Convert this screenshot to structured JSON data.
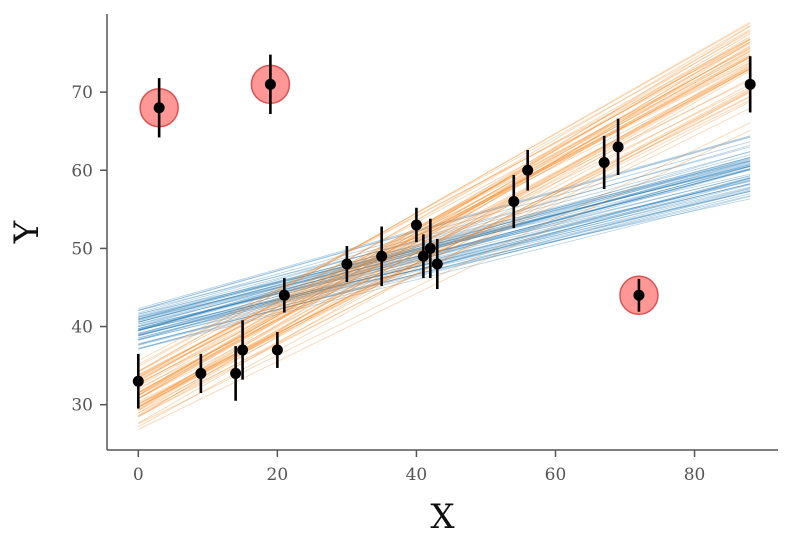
{
  "chart_data": {
    "type": "scatter",
    "title": "",
    "xlabel": "X",
    "ylabel": "Y",
    "xlim": [
      -4.5,
      92
    ],
    "ylim": [
      24.2,
      80
    ],
    "xticks": [
      0,
      20,
      40,
      60,
      80
    ],
    "yticks": [
      30,
      40,
      50,
      60,
      70
    ],
    "grid": false,
    "legend": "none",
    "points": [
      {
        "x": 0,
        "y": 33,
        "err": 3.5
      },
      {
        "x": 3,
        "y": 68,
        "err": 3.8
      },
      {
        "x": 9,
        "y": 34,
        "err": 2.5
      },
      {
        "x": 14,
        "y": 34,
        "err": 3.5
      },
      {
        "x": 15,
        "y": 37,
        "err": 3.8
      },
      {
        "x": 19,
        "y": 71,
        "err": 3.8
      },
      {
        "x": 20,
        "y": 37,
        "err": 2.3
      },
      {
        "x": 21,
        "y": 44,
        "err": 2.2
      },
      {
        "x": 30,
        "y": 48,
        "err": 2.3
      },
      {
        "x": 35,
        "y": 49,
        "err": 3.8
      },
      {
        "x": 40,
        "y": 53,
        "err": 2.2
      },
      {
        "x": 41,
        "y": 49,
        "err": 2.8
      },
      {
        "x": 42,
        "y": 50,
        "err": 3.8
      },
      {
        "x": 43,
        "y": 48,
        "err": 3.2
      },
      {
        "x": 54,
        "y": 56,
        "err": 3.4
      },
      {
        "x": 56,
        "y": 60,
        "err": 2.6
      },
      {
        "x": 67,
        "y": 61,
        "err": 3.4
      },
      {
        "x": 69,
        "y": 63,
        "err": 3.6
      },
      {
        "x": 72,
        "y": 44,
        "err": 2.1
      },
      {
        "x": 88,
        "y": 71,
        "err": 3.6
      }
    ],
    "outliers": [
      {
        "x": 3,
        "y": 68
      },
      {
        "x": 19,
        "y": 71
      },
      {
        "x": 72,
        "y": 44
      }
    ],
    "fit_bands": [
      {
        "color": "#1f77b4",
        "intercept": 40.0,
        "slope": 0.23,
        "intercept_spread": 1.4,
        "slope_spread": 0.015,
        "n_lines": 60
      },
      {
        "color": "#ff7f0e",
        "intercept": 31.0,
        "slope": 0.48,
        "intercept_spread": 2.2,
        "slope_spread": 0.03,
        "n_lines": 60
      }
    ],
    "colors": {
      "points": "#000000",
      "outlier_fill": "#ff6b6b",
      "outlier_stroke": "#e05050"
    }
  }
}
